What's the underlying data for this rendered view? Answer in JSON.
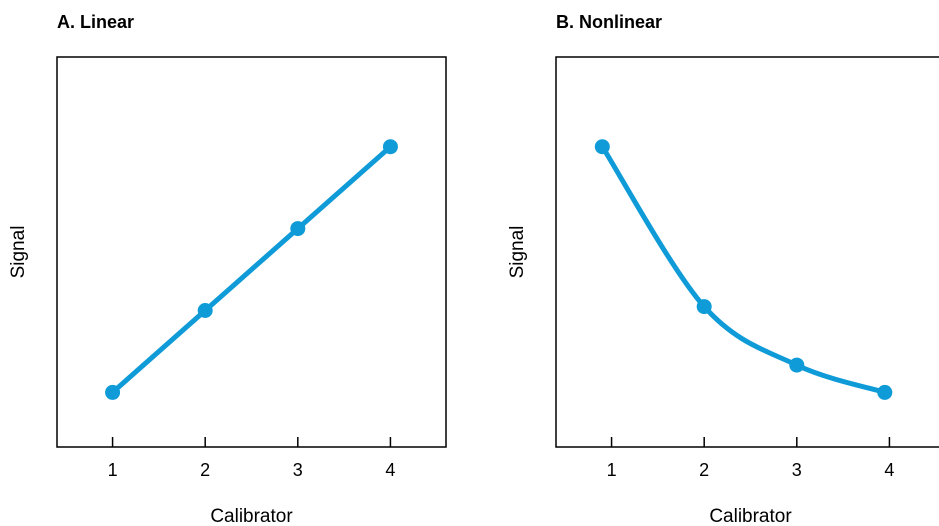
{
  "chart_data": [
    {
      "type": "line",
      "title": "A. Linear",
      "xlabel": "Calibrator",
      "ylabel": "Signal",
      "x_ticks": [
        "1",
        "2",
        "3",
        "4"
      ],
      "xlim": [
        0.4,
        4.6
      ],
      "ylim": [
        0,
        10
      ],
      "grid": false,
      "line_color": "#0f9bd7",
      "series": [
        {
          "x": [
            1,
            2,
            3,
            4
          ],
          "y": [
            1.4,
            3.5,
            5.6,
            7.7
          ]
        }
      ]
    },
    {
      "type": "line",
      "title": "B. Nonlinear",
      "xlabel": "Calibrator",
      "ylabel": "Signal",
      "x_ticks": [
        "1",
        "2",
        "3",
        "4"
      ],
      "xlim": [
        0.4,
        4.6
      ],
      "ylim": [
        0,
        10
      ],
      "grid": false,
      "line_color": "#0f9bd7",
      "series": [
        {
          "x": [
            0.9,
            2,
            3,
            3.95
          ],
          "y": [
            7.7,
            3.6,
            2.1,
            1.4
          ]
        }
      ]
    }
  ]
}
